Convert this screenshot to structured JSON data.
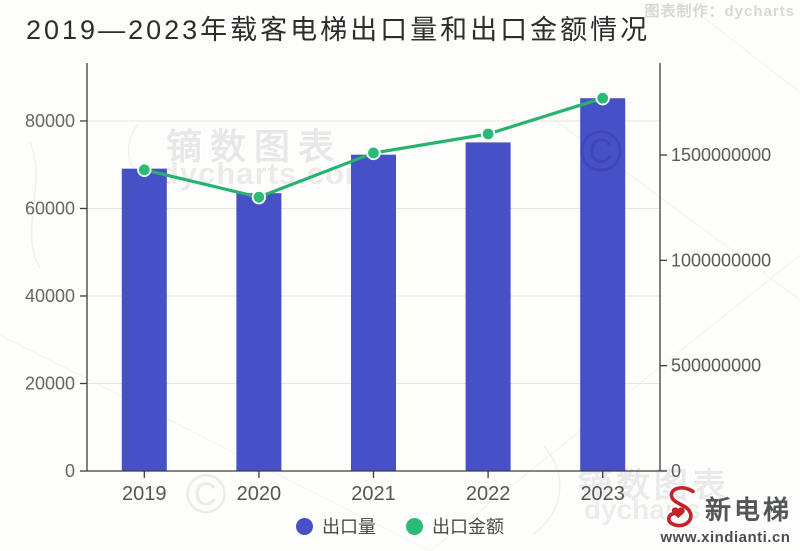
{
  "header": {
    "watermark_credit": "图表制作：dycharts"
  },
  "watermarks": {
    "brand_cn": "镝数图表",
    "brand_site": "dycharts.com",
    "brand_site_short": "dycharts",
    "copyright_symbol": "©"
  },
  "chart_data": {
    "type": "bar",
    "title": "2019—2023年载客电梯出口量和出口金额情况",
    "categories": [
      "2019",
      "2020",
      "2021",
      "2022",
      "2023"
    ],
    "series": [
      {
        "name": "出口量",
        "type": "bar",
        "y_axis": "left",
        "color": "#4650c7",
        "values": [
          69100,
          63500,
          72300,
          75100,
          85200
        ]
      },
      {
        "name": "出口金额",
        "type": "line",
        "y_axis": "right",
        "color": "#27b270",
        "point_fill": "#2cba78",
        "point_stroke": "#ffffff",
        "values": [
          1430000000,
          1300000000,
          1510000000,
          1600000000,
          1770000000
        ]
      }
    ],
    "left_axis": {
      "ticks": [
        0,
        20000,
        40000,
        60000,
        80000
      ],
      "range": [
        0,
        93250
      ]
    },
    "right_axis": {
      "ticks": [
        0,
        500000000,
        1000000000,
        1500000000
      ],
      "range": [
        0,
        1937000000
      ]
    },
    "grid": true,
    "legend_position": "bottom"
  },
  "legend": {
    "items": [
      {
        "label": "出口量",
        "color": "#4650c7"
      },
      {
        "label": "出口金额",
        "color": "#2cba78"
      }
    ]
  },
  "logo": {
    "brand": "新电梯",
    "site": "www.xindianti.cn",
    "accent": "#c2242a"
  }
}
